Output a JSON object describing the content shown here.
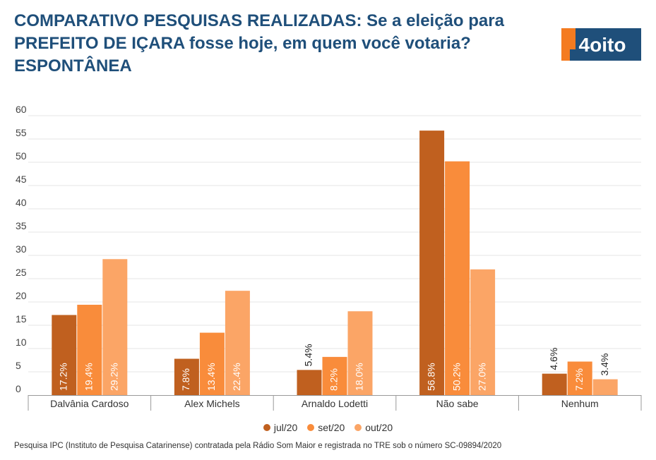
{
  "header": {
    "title": "COMPARATIVO PESQUISAS REALIZADAS: Se a eleição para PREFEITO DE IÇARA fosse hoje, em quem você votaria? ESPONTÂNEA",
    "logo_text": "4oito"
  },
  "colors": {
    "title": "#1f4f7a",
    "logo_bg": "#1f4f7a",
    "logo_accent": "#f47b20",
    "series": [
      "#c0601f",
      "#f98c3b",
      "#fba566"
    ]
  },
  "chart_data": {
    "type": "bar",
    "categories": [
      "Dalvânia Cardoso",
      "Alex Michels",
      "Arnaldo Lodetti",
      "Não sabe",
      "Nenhum"
    ],
    "series": [
      {
        "name": "jul/20",
        "values": [
          17.2,
          7.8,
          5.4,
          56.8,
          4.6
        ],
        "labels": [
          "17.2%",
          "7.8%",
          "5.4%",
          "56.8%",
          "4.6%"
        ]
      },
      {
        "name": "set/20",
        "values": [
          19.4,
          13.4,
          8.2,
          50.2,
          7.2
        ],
        "labels": [
          "19.4%",
          "13.4%",
          "8.2%",
          "50.2%",
          "7.2%"
        ]
      },
      {
        "name": "out/20",
        "values": [
          29.2,
          22.4,
          18.0,
          27.0,
          3.4
        ],
        "labels": [
          "29.2%",
          "22.4%",
          "18.0%",
          "27.0%",
          "3.4%"
        ]
      }
    ],
    "y_ticks": [
      "0",
      "5",
      "10",
      "15",
      "20",
      "25",
      "30",
      "35",
      "40",
      "45",
      "50",
      "55",
      "60"
    ],
    "ylim": [
      0,
      60
    ],
    "grid": true,
    "legend_position": "bottom-center"
  },
  "footer": {
    "source": "Pesquisa IPC (Instituto de Pesquisa Catarinense) contratada pela Rádio Som Maior e registrada no TRE sob o número SC-09894/2020"
  }
}
